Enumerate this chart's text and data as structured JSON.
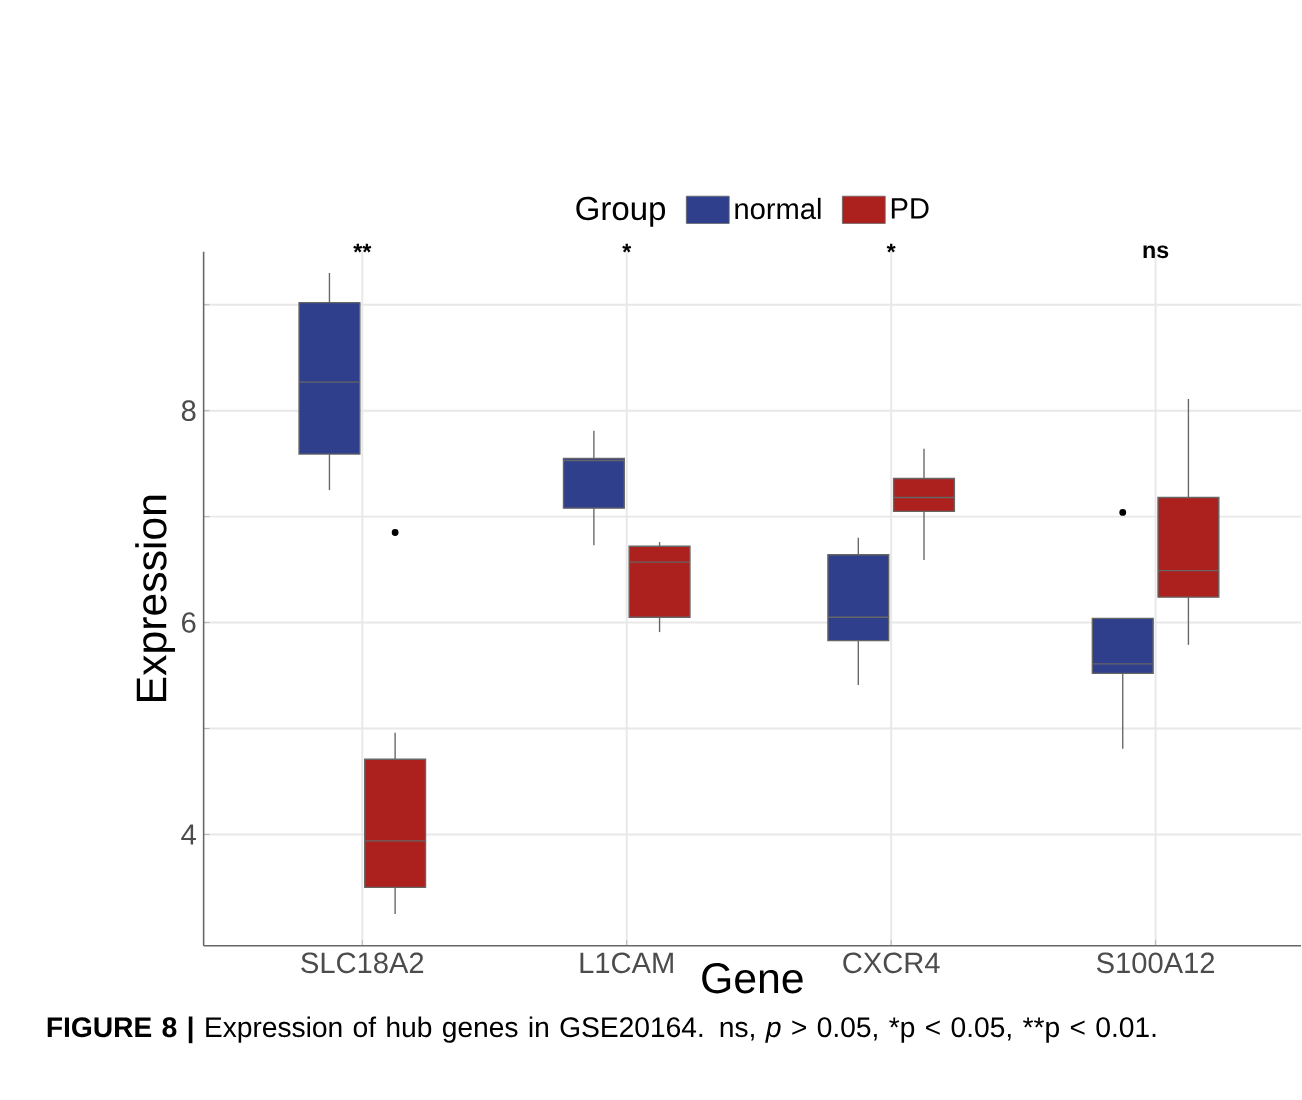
{
  "chart_data": {
    "type": "box",
    "xlabel": "Gene",
    "ylabel": "Expression",
    "legend_title": "Group",
    "categories": [
      "SLC18A2",
      "L1CAM",
      "CXCR4",
      "S100A12"
    ],
    "series": [
      {
        "name": "normal",
        "color": "#2f3f8c",
        "boxes": [
          {
            "low": 7.25,
            "q1": 7.59,
            "median": 8.27,
            "q3": 9.02,
            "high": 9.3
          },
          {
            "low": 6.73,
            "q1": 7.08,
            "median": 7.53,
            "q3": 7.55,
            "high": 7.81
          },
          {
            "low": 5.41,
            "q1": 5.83,
            "median": 6.05,
            "q3": 6.64,
            "high": 6.8
          },
          {
            "low": 4.81,
            "q1": 5.52,
            "median": 5.61,
            "q3": 6.04,
            "high": 6.04,
            "outliers": [
              7.04
            ]
          }
        ]
      },
      {
        "name": "PD",
        "color": "#ac201e",
        "boxes": [
          {
            "low": 3.25,
            "q1": 3.5,
            "median": 3.94,
            "q3": 4.71,
            "high": 4.96,
            "outliers": [
              6.85
            ]
          },
          {
            "low": 5.91,
            "q1": 6.05,
            "median": 6.57,
            "q3": 6.72,
            "high": 6.76
          },
          {
            "low": 6.59,
            "q1": 7.05,
            "median": 7.18,
            "q3": 7.36,
            "high": 7.64
          },
          {
            "low": 5.79,
            "q1": 6.24,
            "median": 6.49,
            "q3": 7.18,
            "high": 8.11
          }
        ]
      }
    ],
    "ylim": [
      2.95,
      9.5
    ],
    "yticks": [
      4,
      {
        "value": 5,
        "label": null
      },
      6,
      {
        "value": 7,
        "label": null
      },
      8,
      {
        "value": 9,
        "label": null
      }
    ],
    "grid": true,
    "legend": "top",
    "annotations": [
      "**",
      "*",
      "*",
      "ns",
      "**FIGURE 8 |** Expression of hub genes in GSE20164. ns, *p* > 0.05,",
      "*p < 0.05,",
      "**p < 0.01."
    ]
  }
}
